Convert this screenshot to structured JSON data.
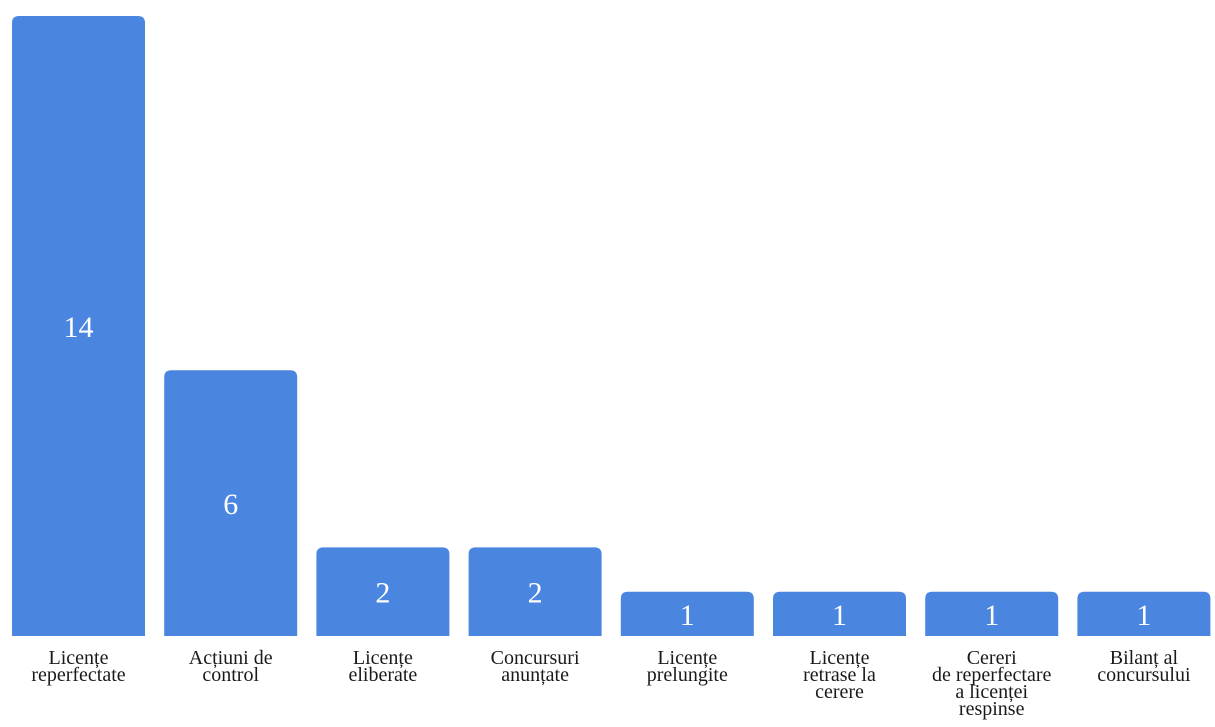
{
  "chart_data": {
    "type": "bar",
    "categories": [
      [
        "Licențe",
        "reperfectate"
      ],
      [
        "Acțiuni de",
        "control"
      ],
      [
        "Licențe",
        "eliberate"
      ],
      [
        "Concursuri",
        "anunțate"
      ],
      [
        "Licențe",
        "prelungite"
      ],
      [
        "Licențe",
        "retrase la",
        "cerere"
      ],
      [
        "Cereri",
        "de reperfectare",
        "a licenței",
        "respinse"
      ],
      [
        "Bilanț al",
        "concursului"
      ]
    ],
    "values": [
      14,
      6,
      2,
      2,
      1,
      1,
      1,
      1
    ],
    "bar_color": "#4a86e0",
    "label_color": "#ffffff",
    "text_color": "#1a1a1a",
    "ylim": [
      0,
      14
    ]
  }
}
